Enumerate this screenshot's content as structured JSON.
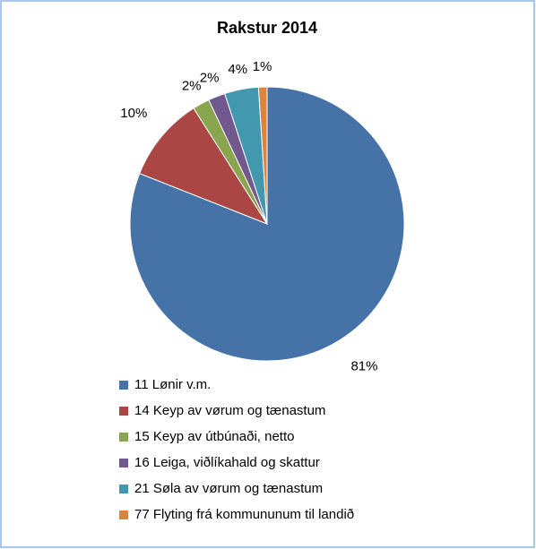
{
  "chart_data": {
    "type": "pie",
    "title": "Rakstur 2014",
    "categories": [
      "11 Lønir v.m.",
      "14 Keyp av vørum og tænastum",
      "15 Keyp av útbúnaði, netto",
      "16 Leiga, viðlíkahald og skattur",
      "21 Søla av vørum og tænastum",
      "77 Flyting frá kommununum til landið"
    ],
    "values": [
      81,
      10,
      2,
      2,
      4,
      1
    ],
    "value_labels": [
      "81%",
      "10%",
      "2%",
      "2%",
      "4%",
      "1%"
    ],
    "colors": [
      "#4572a7",
      "#aa4643",
      "#89a54e",
      "#71588f",
      "#4198af",
      "#db843d"
    ],
    "legend": "bottom"
  }
}
